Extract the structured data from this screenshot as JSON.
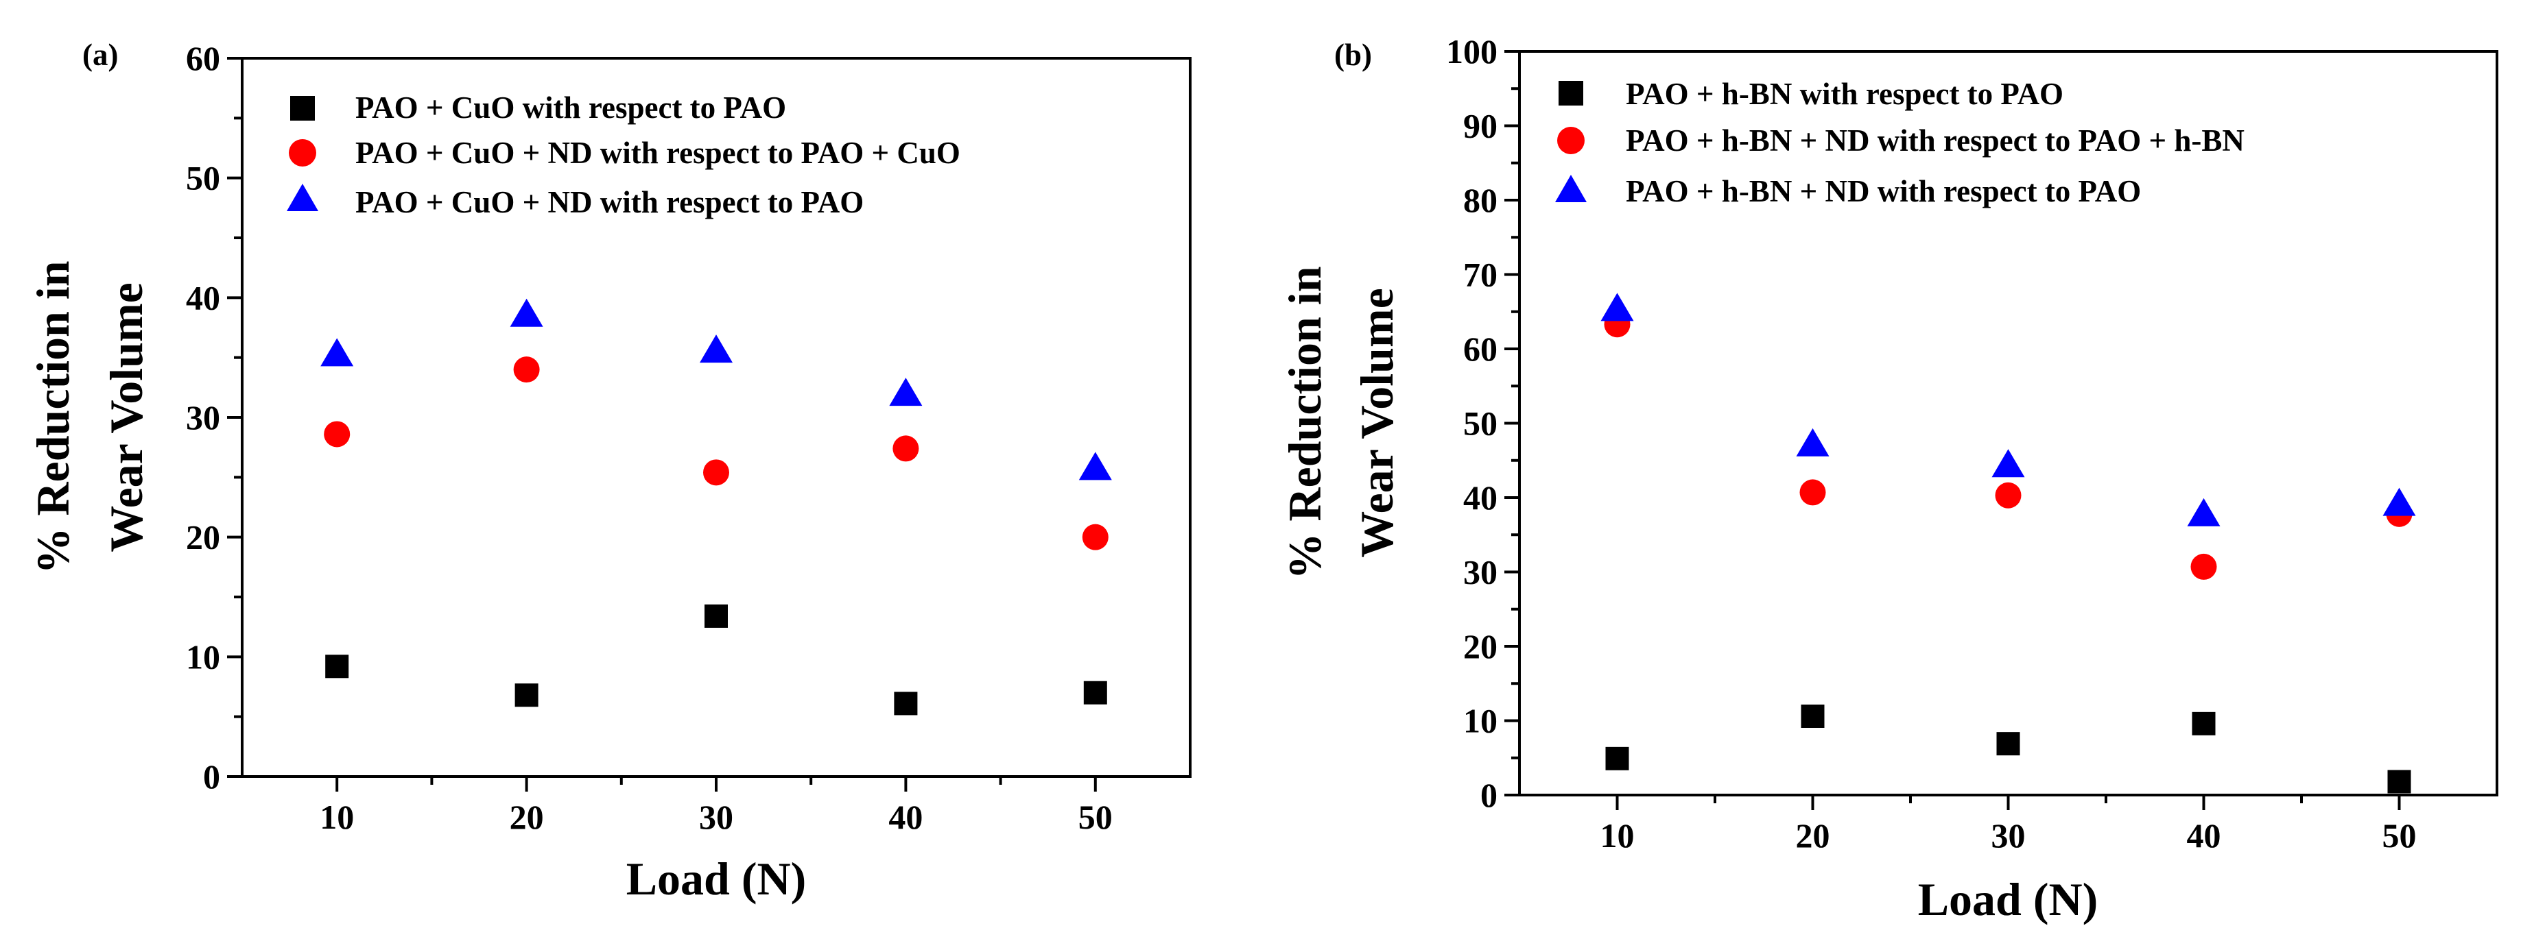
{
  "colors": {
    "black": "#000000",
    "red": "#ff0000",
    "blue": "#0000ff"
  },
  "chart_data": [
    {
      "panel": "(a)",
      "type": "scatter",
      "xlabel": "Load (N)",
      "ylabel_lines": [
        "% Reduction in",
        "Wear Volume"
      ],
      "xlim": [
        5,
        55
      ],
      "ylim": [
        0,
        60
      ],
      "xticks": [
        10,
        20,
        30,
        40,
        50
      ],
      "yticks": [
        0,
        10,
        20,
        30,
        40,
        50,
        60
      ],
      "legend_position": "top-left",
      "series": [
        {
          "name": "PAO + CuO with respect to PAO",
          "marker": "square",
          "color": "#000000",
          "x": [
            10,
            20,
            30,
            40,
            50
          ],
          "y": [
            9.2,
            6.8,
            13.4,
            6.1,
            7.0
          ]
        },
        {
          "name": "PAO + CuO + ND with respect to PAO + CuO",
          "marker": "circle",
          "color": "#ff0000",
          "x": [
            10,
            20,
            30,
            40,
            50
          ],
          "y": [
            28.6,
            34.0,
            25.4,
            27.4,
            20.0
          ]
        },
        {
          "name": "PAO + CuO + ND with respect to PAO",
          "marker": "triangle",
          "color": "#0000ff",
          "x": [
            10,
            20,
            30,
            40,
            50
          ],
          "y": [
            35.3,
            38.6,
            35.6,
            32.0,
            25.8
          ]
        }
      ]
    },
    {
      "panel": "(b)",
      "type": "scatter",
      "xlabel": "Load (N)",
      "ylabel_lines": [
        "% Reduction in",
        "Wear Volume"
      ],
      "xlim": [
        5,
        55
      ],
      "ylim": [
        0,
        100
      ],
      "xticks": [
        10,
        20,
        30,
        40,
        50
      ],
      "yticks": [
        0,
        10,
        20,
        30,
        40,
        50,
        60,
        70,
        80,
        90,
        100
      ],
      "legend_position": "top-left",
      "series": [
        {
          "name": "PAO + h-BN with respect to PAO",
          "marker": "square",
          "color": "#000000",
          "x": [
            10,
            20,
            30,
            40,
            50
          ],
          "y": [
            4.9,
            10.6,
            6.9,
            9.6,
            1.8
          ]
        },
        {
          "name": "PAO + h-BN + ND with respect to PAO + h-BN",
          "marker": "circle",
          "color": "#ff0000",
          "x": [
            10,
            20,
            30,
            40,
            50
          ],
          "y": [
            63.3,
            40.7,
            40.3,
            30.7,
            37.8
          ]
        },
        {
          "name": "PAO + h-BN + ND with respect to PAO",
          "marker": "triangle",
          "color": "#0000ff",
          "x": [
            10,
            20,
            30,
            40,
            50
          ],
          "y": [
            65.4,
            47.2,
            44.4,
            37.8,
            39.2
          ]
        }
      ]
    }
  ]
}
